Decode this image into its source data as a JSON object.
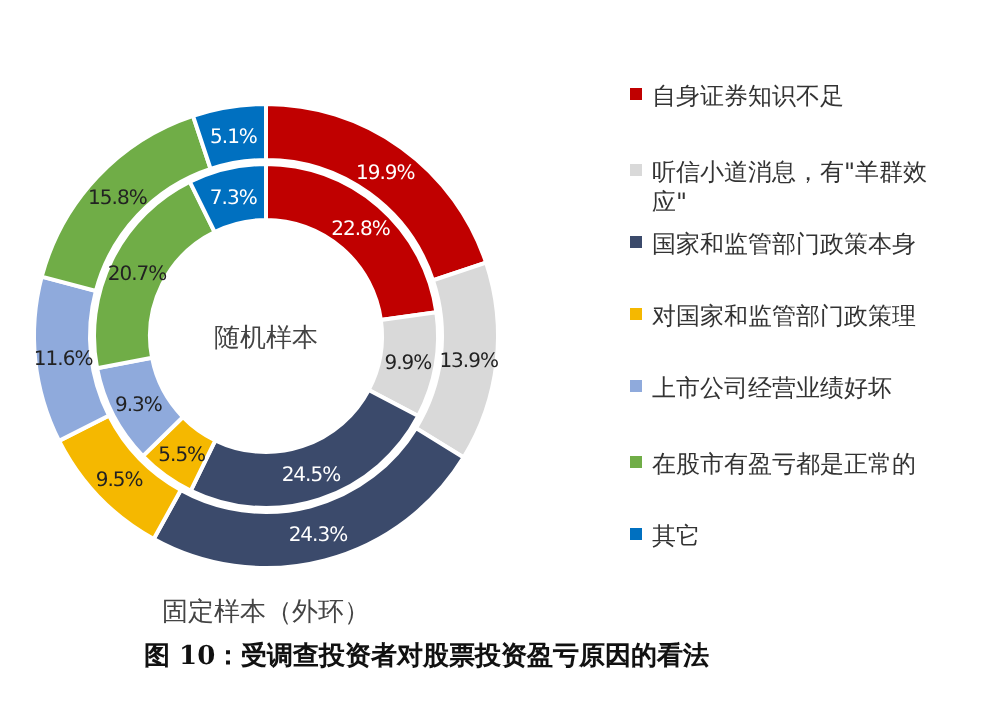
{
  "chart_data": {
    "type": "donut",
    "title": "图 10：受调查投资者对股票投资盈亏原因的看法",
    "categories": [
      "自身证券知识不足",
      "听信小道消息，有\"羊群效应\"",
      "国家和监管部门政策本身",
      "对国家和监管部门政策理",
      "上市公司经营业绩好坏",
      "在股市有盈亏都是正常的",
      "其它"
    ],
    "colors": [
      "#c00000",
      "#d9d9d9",
      "#3b4a6b",
      "#f5b800",
      "#8faadc",
      "#70ad47",
      "#0070c0"
    ],
    "series": [
      {
        "name": "固定样本（外环）",
        "values": [
          19.9,
          13.9,
          24.3,
          9.5,
          11.6,
          15.8,
          5.1
        ],
        "value_labels": [
          "19.9%",
          "13.9%",
          "24.3%",
          "9.5%",
          "11.6%",
          "15.8%",
          "5.1%"
        ]
      },
      {
        "name": "随机样本",
        "values": [
          22.8,
          9.9,
          24.5,
          5.5,
          9.3,
          20.7,
          7.3
        ],
        "value_labels": [
          "22.8%",
          "9.9%",
          "24.5%",
          "5.5%",
          "9.3%",
          "20.7%",
          "7.3%"
        ]
      }
    ],
    "legend": "right"
  }
}
